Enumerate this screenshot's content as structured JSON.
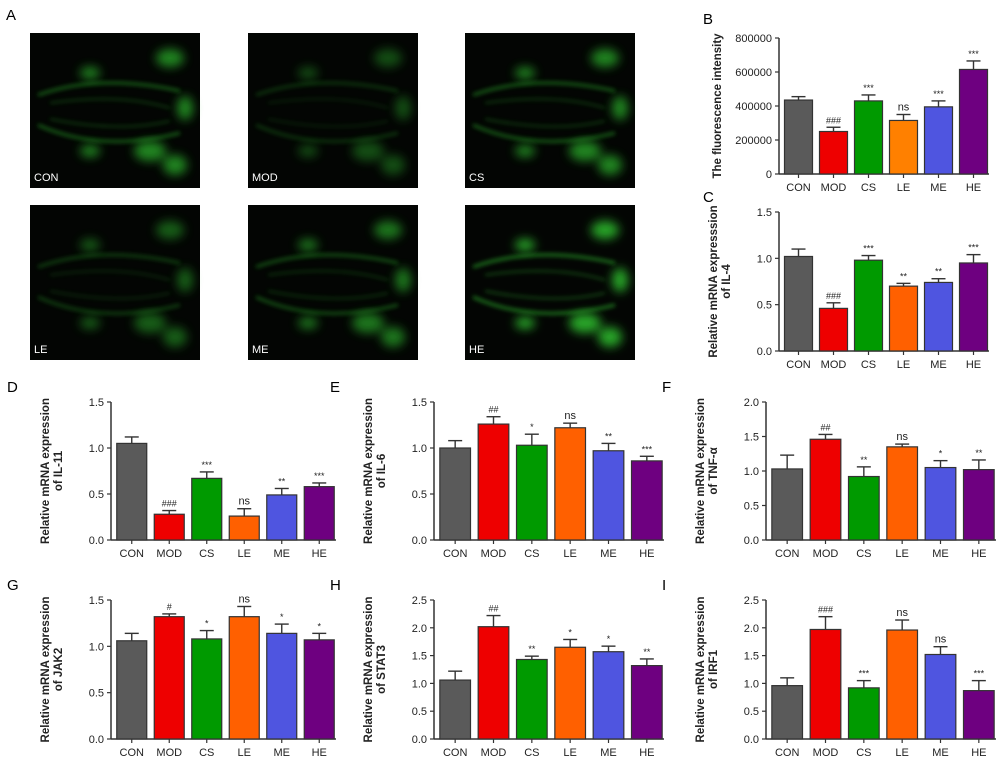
{
  "groups": [
    "CON",
    "MOD",
    "CS",
    "LE",
    "ME",
    "HE"
  ],
  "colors": {
    "CON": "#5a5a5a",
    "MOD": "#ee0000",
    "CS": "#009a00",
    "LE": "#ff6000",
    "LE_B": "#ff8000",
    "ME": "#4f55e0",
    "HE": "#6e0080",
    "fluorescence": "#2fbf2f"
  },
  "panel_a": {
    "letter": "A",
    "images": [
      {
        "label": "CON",
        "intensity": 0.8
      },
      {
        "label": "MOD",
        "intensity": 0.45
      },
      {
        "label": "CS",
        "intensity": 0.8
      },
      {
        "label": "LE",
        "intensity": 0.55
      },
      {
        "label": "ME",
        "intensity": 0.7
      },
      {
        "label": "HE",
        "intensity": 1.0
      }
    ]
  },
  "chart_data": [
    {
      "id": "B",
      "letter": "B",
      "type": "bar",
      "ylabel": [
        "The fluorescence intensity"
      ],
      "ylim": [
        0,
        800000
      ],
      "ticks": [
        "0",
        "200000",
        "400000",
        "600000",
        "800000"
      ],
      "tick_values": [
        0,
        200000,
        400000,
        600000,
        800000
      ],
      "categories": [
        "CON",
        "MOD",
        "CS",
        "LE",
        "ME",
        "HE"
      ],
      "values": [
        435000,
        250000,
        430000,
        315000,
        395000,
        615000
      ],
      "errors": [
        20000,
        25000,
        35000,
        35000,
        35000,
        50000
      ],
      "annotations": [
        "",
        "###",
        "***",
        "ns",
        "***",
        "***"
      ]
    },
    {
      "id": "C",
      "letter": "C",
      "type": "bar",
      "ylabel": [
        "Relative mRNA expresssion",
        "of IL-4"
      ],
      "ylim": [
        0,
        1.5
      ],
      "ticks": [
        "0.0",
        "0.5",
        "1.0",
        "1.5"
      ],
      "tick_values": [
        0,
        0.5,
        1.0,
        1.5
      ],
      "categories": [
        "CON",
        "MOD",
        "CS",
        "LE",
        "ME",
        "HE"
      ],
      "values": [
        1.02,
        0.46,
        0.98,
        0.7,
        0.74,
        0.95
      ],
      "errors": [
        0.08,
        0.06,
        0.05,
        0.03,
        0.04,
        0.09
      ],
      "annotations": [
        "",
        "###",
        "***",
        "**",
        "**",
        "***"
      ]
    },
    {
      "id": "D",
      "letter": "D",
      "type": "bar",
      "ylabel": [
        "Relative mRNA expression",
        "of IL-11"
      ],
      "ylim": [
        0,
        1.5
      ],
      "ticks": [
        "0.0",
        "0.5",
        "1.0",
        "1.5"
      ],
      "tick_values": [
        0,
        0.5,
        1.0,
        1.5
      ],
      "categories": [
        "CON",
        "MOD",
        "CS",
        "LE",
        "ME",
        "HE"
      ],
      "values": [
        1.05,
        0.28,
        0.67,
        0.26,
        0.49,
        0.58
      ],
      "errors": [
        0.07,
        0.04,
        0.07,
        0.08,
        0.07,
        0.04
      ],
      "annotations": [
        "",
        "###",
        "***",
        "ns",
        "**",
        "***"
      ]
    },
    {
      "id": "E",
      "letter": "E",
      "type": "bar",
      "ylabel": [
        "Relative mRNA expression",
        "of IL-6"
      ],
      "ylim": [
        0,
        1.5
      ],
      "ticks": [
        "0.0",
        "0.5",
        "1.0",
        "1.5"
      ],
      "tick_values": [
        0,
        0.5,
        1.0,
        1.5
      ],
      "categories": [
        "CON",
        "MOD",
        "CS",
        "LE",
        "ME",
        "HE"
      ],
      "values": [
        1.0,
        1.26,
        1.03,
        1.22,
        0.97,
        0.86
      ],
      "errors": [
        0.08,
        0.08,
        0.12,
        0.05,
        0.08,
        0.05
      ],
      "annotations": [
        "",
        "##",
        "*",
        "ns",
        "**",
        "***"
      ]
    },
    {
      "id": "F",
      "letter": "F",
      "type": "bar",
      "ylabel": [
        "Relative mRNA expression",
        "of TNF-α"
      ],
      "ylim": [
        0,
        2.0
      ],
      "ticks": [
        "0.0",
        "0.5",
        "1.0",
        "1.5",
        "2.0"
      ],
      "tick_values": [
        0,
        0.5,
        1.0,
        1.5,
        2.0
      ],
      "categories": [
        "CON",
        "MOD",
        "CS",
        "LE",
        "ME",
        "HE"
      ],
      "values": [
        1.03,
        1.46,
        0.92,
        1.35,
        1.05,
        1.02
      ],
      "errors": [
        0.2,
        0.07,
        0.14,
        0.04,
        0.1,
        0.14
      ],
      "annotations": [
        "",
        "##",
        "**",
        "ns",
        "*",
        "**"
      ]
    },
    {
      "id": "G",
      "letter": "G",
      "type": "bar",
      "ylabel": [
        "Relative mRNA expression",
        "of JAK2"
      ],
      "ylim": [
        0,
        1.5
      ],
      "ticks": [
        "0.0",
        "0.5",
        "1.0",
        "1.5"
      ],
      "tick_values": [
        0,
        0.5,
        1.0,
        1.5
      ],
      "categories": [
        "CON",
        "MOD",
        "CS",
        "LE",
        "ME",
        "HE"
      ],
      "values": [
        1.06,
        1.32,
        1.08,
        1.32,
        1.14,
        1.07
      ],
      "errors": [
        0.08,
        0.03,
        0.09,
        0.11,
        0.1,
        0.07
      ],
      "annotations": [
        "",
        "#",
        "*",
        "ns",
        "*",
        "*"
      ]
    },
    {
      "id": "H",
      "letter": "H",
      "type": "bar",
      "ylabel": [
        "Relative mRNA expression",
        "of STAT3"
      ],
      "ylim": [
        0,
        2.5
      ],
      "ticks": [
        "0.0",
        "0.5",
        "1.0",
        "1.5",
        "2.0",
        "2.5"
      ],
      "tick_values": [
        0,
        0.5,
        1.0,
        1.5,
        2.0,
        2.5
      ],
      "categories": [
        "CON",
        "MOD",
        "CS",
        "LE",
        "ME",
        "HE"
      ],
      "values": [
        1.06,
        2.02,
        1.43,
        1.65,
        1.57,
        1.32
      ],
      "errors": [
        0.16,
        0.2,
        0.06,
        0.14,
        0.1,
        0.12
      ],
      "annotations": [
        "",
        "##",
        "**",
        "*",
        "*",
        "**"
      ]
    },
    {
      "id": "I",
      "letter": "I",
      "type": "bar",
      "ylabel": [
        "Relative mRNA expression",
        "of IRF1"
      ],
      "ylim": [
        0,
        2.5
      ],
      "ticks": [
        "0.0",
        "0.5",
        "1.0",
        "1.5",
        "2.0",
        "2.5"
      ],
      "tick_values": [
        0,
        0.5,
        1.0,
        1.5,
        2.0,
        2.5
      ],
      "categories": [
        "CON",
        "MOD",
        "CS",
        "LE",
        "ME",
        "HE"
      ],
      "values": [
        0.96,
        1.97,
        0.92,
        1.96,
        1.52,
        0.87
      ],
      "errors": [
        0.14,
        0.23,
        0.13,
        0.18,
        0.14,
        0.18
      ],
      "annotations": [
        "",
        "###",
        "***",
        "ns",
        "ns",
        "***"
      ]
    }
  ]
}
